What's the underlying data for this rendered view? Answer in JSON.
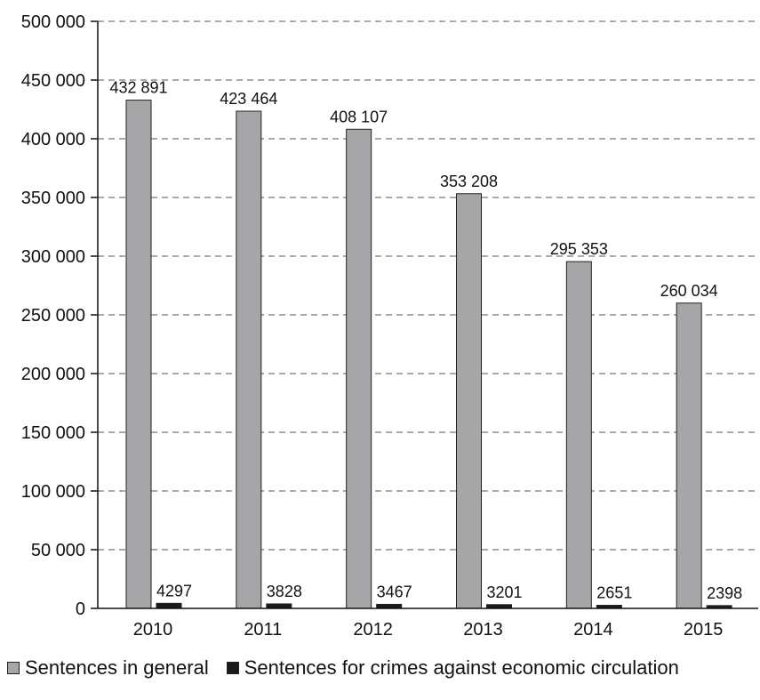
{
  "chart_data": {
    "type": "bar",
    "categories": [
      "2010",
      "2011",
      "2012",
      "2013",
      "2014",
      "2015"
    ],
    "series": [
      {
        "name": "Sentences in general",
        "values": [
          432891,
          423464,
          408107,
          353208,
          295353,
          260034
        ],
        "labels": [
          "432 891",
          "423 464",
          "408 107",
          "353 208",
          "295 353",
          "260 034"
        ],
        "color": "#a6a6a8"
      },
      {
        "name": "Sentences for crimes against economic circulation",
        "values": [
          4297,
          3828,
          3467,
          3201,
          2651,
          2398
        ],
        "labels": [
          "4297",
          "3828",
          "3467",
          "3201",
          "2651",
          "2398"
        ],
        "color": "#1a1a1a"
      }
    ],
    "y_ticks": [
      0,
      50000,
      100000,
      150000,
      200000,
      250000,
      300000,
      350000,
      400000,
      450000,
      500000
    ],
    "y_tick_labels": [
      "0",
      "50 000",
      "100 000",
      "150 000",
      "200 000",
      "250 000",
      "300 000",
      "350 000",
      "400 000",
      "450 000",
      "500 000"
    ],
    "ylim": [
      0,
      500000
    ],
    "grid": true,
    "legend_position": "bottom"
  }
}
